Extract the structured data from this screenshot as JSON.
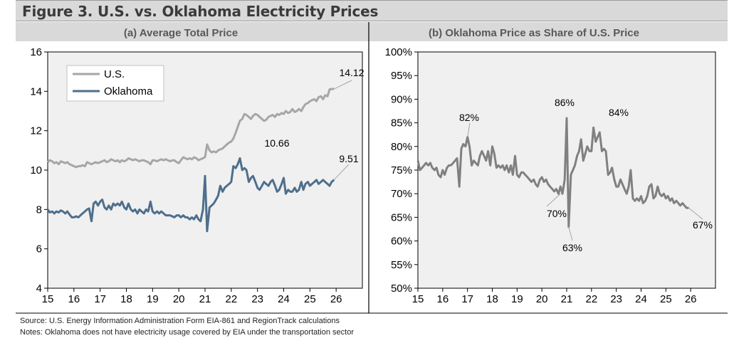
{
  "title": "Figure 3. U.S. vs. Oklahoma Electricity Prices",
  "footer": {
    "source": "Source: U.S. Energy Information Administration Form EIA-861 and RegionTrack calculations",
    "notes": "Notes: Oklahoma does not have electricity usage covered by EIA under the transportation sector"
  },
  "colors": {
    "us": "#a6a6a6",
    "oklahoma": "#4e6f8c",
    "share": "#808080",
    "plot_bg": "#f0f0f0",
    "header_bg": "#d9d9d9"
  },
  "chart_data": [
    {
      "type": "line",
      "title": "(a) Average Total Price",
      "x_tick_labels": [
        "15",
        "16",
        "17",
        "18",
        "19",
        "20",
        "21",
        "22",
        "23",
        "24",
        "25",
        "26"
      ],
      "xlim": [
        2015,
        2027
      ],
      "ylim": [
        4,
        16
      ],
      "y_ticks": [
        "4",
        "6",
        "8",
        "10",
        "12",
        "14",
        "16"
      ],
      "legend_position": "top-left",
      "grid": false,
      "series": [
        {
          "name": "U.S.",
          "x": [
            2015.0,
            2015.08,
            2015.17,
            2015.25,
            2015.33,
            2015.42,
            2015.5,
            2015.58,
            2015.67,
            2015.75,
            2015.83,
            2015.92,
            2016.0,
            2016.08,
            2016.17,
            2016.25,
            2016.33,
            2016.42,
            2016.5,
            2016.58,
            2016.67,
            2016.75,
            2016.83,
            2016.92,
            2017.0,
            2017.08,
            2017.17,
            2017.25,
            2017.33,
            2017.42,
            2017.5,
            2017.58,
            2017.67,
            2017.75,
            2017.83,
            2017.92,
            2018.0,
            2018.08,
            2018.17,
            2018.25,
            2018.33,
            2018.42,
            2018.5,
            2018.58,
            2018.67,
            2018.75,
            2018.83,
            2018.92,
            2019.0,
            2019.08,
            2019.17,
            2019.25,
            2019.33,
            2019.42,
            2019.5,
            2019.58,
            2019.67,
            2019.75,
            2019.83,
            2019.92,
            2020.0,
            2020.08,
            2020.17,
            2020.25,
            2020.33,
            2020.42,
            2020.5,
            2020.58,
            2020.67,
            2020.75,
            2020.83,
            2020.92,
            2021.0,
            2021.08,
            2021.17,
            2021.25,
            2021.33,
            2021.42,
            2021.5,
            2021.58,
            2021.67,
            2021.75,
            2021.83,
            2021.92,
            2022.0,
            2022.08,
            2022.17,
            2022.25,
            2022.33,
            2022.42,
            2022.5,
            2022.58,
            2022.67,
            2022.75,
            2022.83,
            2022.92,
            2023.0,
            2023.08,
            2023.17,
            2023.25,
            2023.33,
            2023.42,
            2023.5,
            2023.58,
            2023.67,
            2023.75,
            2023.83,
            2023.92,
            2024.0,
            2024.08,
            2024.17,
            2024.25,
            2024.33,
            2024.42,
            2024.5,
            2024.58,
            2024.67,
            2024.75,
            2024.83,
            2024.92,
            2025.0,
            2025.08,
            2025.17,
            2025.25,
            2025.33,
            2025.42,
            2025.5,
            2025.58,
            2025.67,
            2025.75,
            2025.83,
            2025.92
          ],
          "y": [
            10.4,
            10.5,
            10.45,
            10.35,
            10.4,
            10.3,
            10.45,
            10.4,
            10.35,
            10.4,
            10.3,
            10.25,
            10.2,
            10.15,
            10.2,
            10.2,
            10.25,
            10.2,
            10.4,
            10.35,
            10.3,
            10.35,
            10.4,
            10.35,
            10.4,
            10.45,
            10.5,
            10.4,
            10.45,
            10.55,
            10.5,
            10.45,
            10.5,
            10.4,
            10.5,
            10.45,
            10.5,
            10.6,
            10.55,
            10.5,
            10.55,
            10.5,
            10.45,
            10.5,
            10.5,
            10.45,
            10.4,
            10.3,
            10.5,
            10.5,
            10.45,
            10.5,
            10.55,
            10.5,
            10.55,
            10.5,
            10.45,
            10.5,
            10.5,
            10.4,
            10.35,
            10.5,
            10.65,
            10.6,
            10.55,
            10.6,
            10.55,
            10.65,
            10.6,
            10.5,
            10.55,
            10.6,
            10.66,
            11.3,
            11.0,
            10.9,
            10.95,
            10.9,
            11.0,
            11.05,
            11.1,
            11.2,
            11.3,
            11.4,
            11.45,
            11.6,
            11.9,
            12.2,
            12.5,
            12.6,
            12.85,
            12.8,
            12.7,
            12.6,
            12.75,
            12.85,
            12.8,
            12.7,
            12.6,
            12.5,
            12.55,
            12.7,
            12.75,
            12.8,
            12.7,
            12.85,
            12.8,
            12.9,
            12.85,
            13.0,
            12.9,
            12.95,
            13.1,
            12.95,
            13.0,
            13.1,
            13.0,
            13.2,
            13.35,
            13.4,
            13.5,
            13.55,
            13.6,
            13.5,
            13.7,
            13.75,
            13.6,
            13.8,
            13.75,
            14.1,
            14.12,
            14.12
          ]
        },
        {
          "name": "Oklahoma",
          "x": [
            2015.0,
            2015.08,
            2015.17,
            2015.25,
            2015.33,
            2015.42,
            2015.5,
            2015.58,
            2015.67,
            2015.75,
            2015.83,
            2015.92,
            2016.0,
            2016.08,
            2016.17,
            2016.25,
            2016.33,
            2016.42,
            2016.5,
            2016.58,
            2016.67,
            2016.75,
            2016.83,
            2016.92,
            2017.0,
            2017.08,
            2017.17,
            2017.25,
            2017.33,
            2017.42,
            2017.5,
            2017.58,
            2017.67,
            2017.75,
            2017.83,
            2017.92,
            2018.0,
            2018.08,
            2018.17,
            2018.25,
            2018.33,
            2018.42,
            2018.5,
            2018.58,
            2018.67,
            2018.75,
            2018.83,
            2018.92,
            2019.0,
            2019.08,
            2019.17,
            2019.25,
            2019.33,
            2019.42,
            2019.5,
            2019.58,
            2019.67,
            2019.75,
            2019.83,
            2019.92,
            2020.0,
            2020.08,
            2020.17,
            2020.25,
            2020.33,
            2020.42,
            2020.5,
            2020.58,
            2020.67,
            2020.75,
            2020.83,
            2020.92,
            2021.0,
            2021.08,
            2021.17,
            2021.25,
            2021.33,
            2021.42,
            2021.5,
            2021.58,
            2021.67,
            2021.75,
            2021.83,
            2021.92,
            2022.0,
            2022.08,
            2022.17,
            2022.25,
            2022.33,
            2022.42,
            2022.5,
            2022.58,
            2022.67,
            2022.75,
            2022.83,
            2022.92,
            2023.0,
            2023.08,
            2023.17,
            2023.25,
            2023.33,
            2023.42,
            2023.5,
            2023.58,
            2023.67,
            2023.75,
            2023.83,
            2023.92,
            2024.0,
            2024.08,
            2024.17,
            2024.25,
            2024.33,
            2024.42,
            2024.5,
            2024.58,
            2024.67,
            2024.75,
            2024.83,
            2024.92,
            2025.0,
            2025.08,
            2025.17,
            2025.25,
            2025.33,
            2025.42,
            2025.5,
            2025.58,
            2025.67,
            2025.75,
            2025.83,
            2025.92
          ],
          "y": [
            8.0,
            7.85,
            7.9,
            7.8,
            7.9,
            7.85,
            7.95,
            7.9,
            7.8,
            7.9,
            7.75,
            7.6,
            7.6,
            7.65,
            7.6,
            7.7,
            7.8,
            7.9,
            8.0,
            8.05,
            7.4,
            8.3,
            8.4,
            8.2,
            8.4,
            8.5,
            8.1,
            8.0,
            8.2,
            8.0,
            8.3,
            8.2,
            8.3,
            8.2,
            8.4,
            8.1,
            8.0,
            8.3,
            8.0,
            7.9,
            8.0,
            7.8,
            8.0,
            7.9,
            7.8,
            8.0,
            7.9,
            8.4,
            7.9,
            7.8,
            7.9,
            7.8,
            7.9,
            7.8,
            7.7,
            7.7,
            7.7,
            7.65,
            7.6,
            7.7,
            7.7,
            7.6,
            7.7,
            7.6,
            7.6,
            7.5,
            7.6,
            7.5,
            7.7,
            7.5,
            7.4,
            8.0,
            9.7,
            6.9,
            8.1,
            8.2,
            8.3,
            8.5,
            8.7,
            9.2,
            8.9,
            9.1,
            9.2,
            9.3,
            9.4,
            10.2,
            10.1,
            10.3,
            10.6,
            10.0,
            10.1,
            10.0,
            9.4,
            9.6,
            9.7,
            9.4,
            9.1,
            9.0,
            9.2,
            9.4,
            9.3,
            9.2,
            9.4,
            9.5,
            9.2,
            8.9,
            9.0,
            9.3,
            9.6,
            8.8,
            9.0,
            8.9,
            8.9,
            9.1,
            8.9,
            9.0,
            9.4,
            9.0,
            9.3,
            9.4,
            9.2,
            9.3,
            9.4,
            9.5,
            9.3,
            9.4,
            9.5,
            9.4,
            9.3,
            9.2,
            9.4,
            9.51
          ]
        }
      ],
      "annotations": [
        "14.12",
        "10.66",
        "9.51"
      ]
    },
    {
      "type": "line",
      "title": "(b)  Oklahoma Price as Share of U.S. Price",
      "x_tick_labels": [
        "15",
        "16",
        "17",
        "18",
        "19",
        "20",
        "21",
        "22",
        "23",
        "24",
        "25",
        "26"
      ],
      "xlim": [
        2015,
        2027
      ],
      "ylim": [
        50,
        100
      ],
      "y_ticks": [
        "50%",
        "55%",
        "60%",
        "65%",
        "70%",
        "75%",
        "80%",
        "85%",
        "90%",
        "95%",
        "100%"
      ],
      "grid": false,
      "series": [
        {
          "x": [
            2015.0,
            2015.08,
            2015.17,
            2015.25,
            2015.33,
            2015.42,
            2015.5,
            2015.58,
            2015.67,
            2015.75,
            2015.83,
            2015.92,
            2016.0,
            2016.08,
            2016.17,
            2016.25,
            2016.33,
            2016.42,
            2016.5,
            2016.58,
            2016.67,
            2016.75,
            2016.83,
            2016.92,
            2017.0,
            2017.08,
            2017.17,
            2017.25,
            2017.33,
            2017.42,
            2017.5,
            2017.58,
            2017.67,
            2017.75,
            2017.83,
            2017.92,
            2018.0,
            2018.08,
            2018.17,
            2018.25,
            2018.33,
            2018.42,
            2018.5,
            2018.58,
            2018.67,
            2018.75,
            2018.83,
            2018.92,
            2019.0,
            2019.08,
            2019.17,
            2019.25,
            2019.33,
            2019.42,
            2019.5,
            2019.58,
            2019.67,
            2019.75,
            2019.83,
            2019.92,
            2020.0,
            2020.08,
            2020.17,
            2020.25,
            2020.33,
            2020.42,
            2020.5,
            2020.58,
            2020.67,
            2020.75,
            2020.83,
            2020.92,
            2021.0,
            2021.08,
            2021.17,
            2021.25,
            2021.33,
            2021.42,
            2021.5,
            2021.58,
            2021.67,
            2021.75,
            2021.83,
            2021.92,
            2022.0,
            2022.08,
            2022.17,
            2022.25,
            2022.33,
            2022.42,
            2022.5,
            2022.58,
            2022.67,
            2022.75,
            2022.83,
            2022.92,
            2023.0,
            2023.08,
            2023.17,
            2023.25,
            2023.33,
            2023.42,
            2023.5,
            2023.58,
            2023.67,
            2023.75,
            2023.83,
            2023.92,
            2024.0,
            2024.08,
            2024.17,
            2024.25,
            2024.33,
            2024.42,
            2024.5,
            2024.58,
            2024.67,
            2024.75,
            2024.83,
            2024.92,
            2025.0,
            2025.08,
            2025.17,
            2025.25,
            2025.33,
            2025.42,
            2025.5,
            2025.58,
            2025.67,
            2025.75,
            2025.83,
            2025.92
          ],
          "y": [
            77,
            75,
            75.5,
            76,
            76.5,
            76,
            76.5,
            75.5,
            75,
            75.5,
            74,
            73.5,
            75,
            74,
            75.5,
            76,
            76,
            76.5,
            77,
            77.5,
            71.5,
            79.5,
            80.5,
            80,
            82,
            80,
            76,
            77,
            76.5,
            76,
            78,
            79,
            78,
            77,
            79,
            76,
            80,
            78.5,
            75.5,
            76,
            75.5,
            76,
            75,
            76,
            74.5,
            76,
            74,
            78,
            74,
            73.5,
            74.5,
            74.5,
            74,
            73.5,
            73,
            72.5,
            73,
            72,
            71.5,
            73,
            73.5,
            72.5,
            73,
            72,
            71.5,
            71,
            70.5,
            71,
            70,
            71.5,
            70,
            73,
            86,
            63,
            74,
            75,
            76,
            78,
            79,
            81.5,
            77,
            78.5,
            80,
            79,
            79,
            84,
            81,
            82,
            83,
            79,
            79.5,
            79,
            74,
            74.5,
            75.5,
            73,
            71.5,
            71.5,
            73,
            72,
            71,
            70,
            71.5,
            75,
            69,
            68.5,
            69,
            68.5,
            69.5,
            68,
            68.5,
            69.5,
            71.5,
            72,
            69,
            69.5,
            71.5,
            70,
            69.5,
            70,
            69,
            69.5,
            68.5,
            69,
            68,
            68.5,
            68,
            67.5,
            68,
            67.5,
            67,
            67
          ]
        }
      ],
      "annotations": [
        "82%",
        "86%",
        "84%",
        "70%",
        "63%",
        "67%"
      ]
    }
  ]
}
